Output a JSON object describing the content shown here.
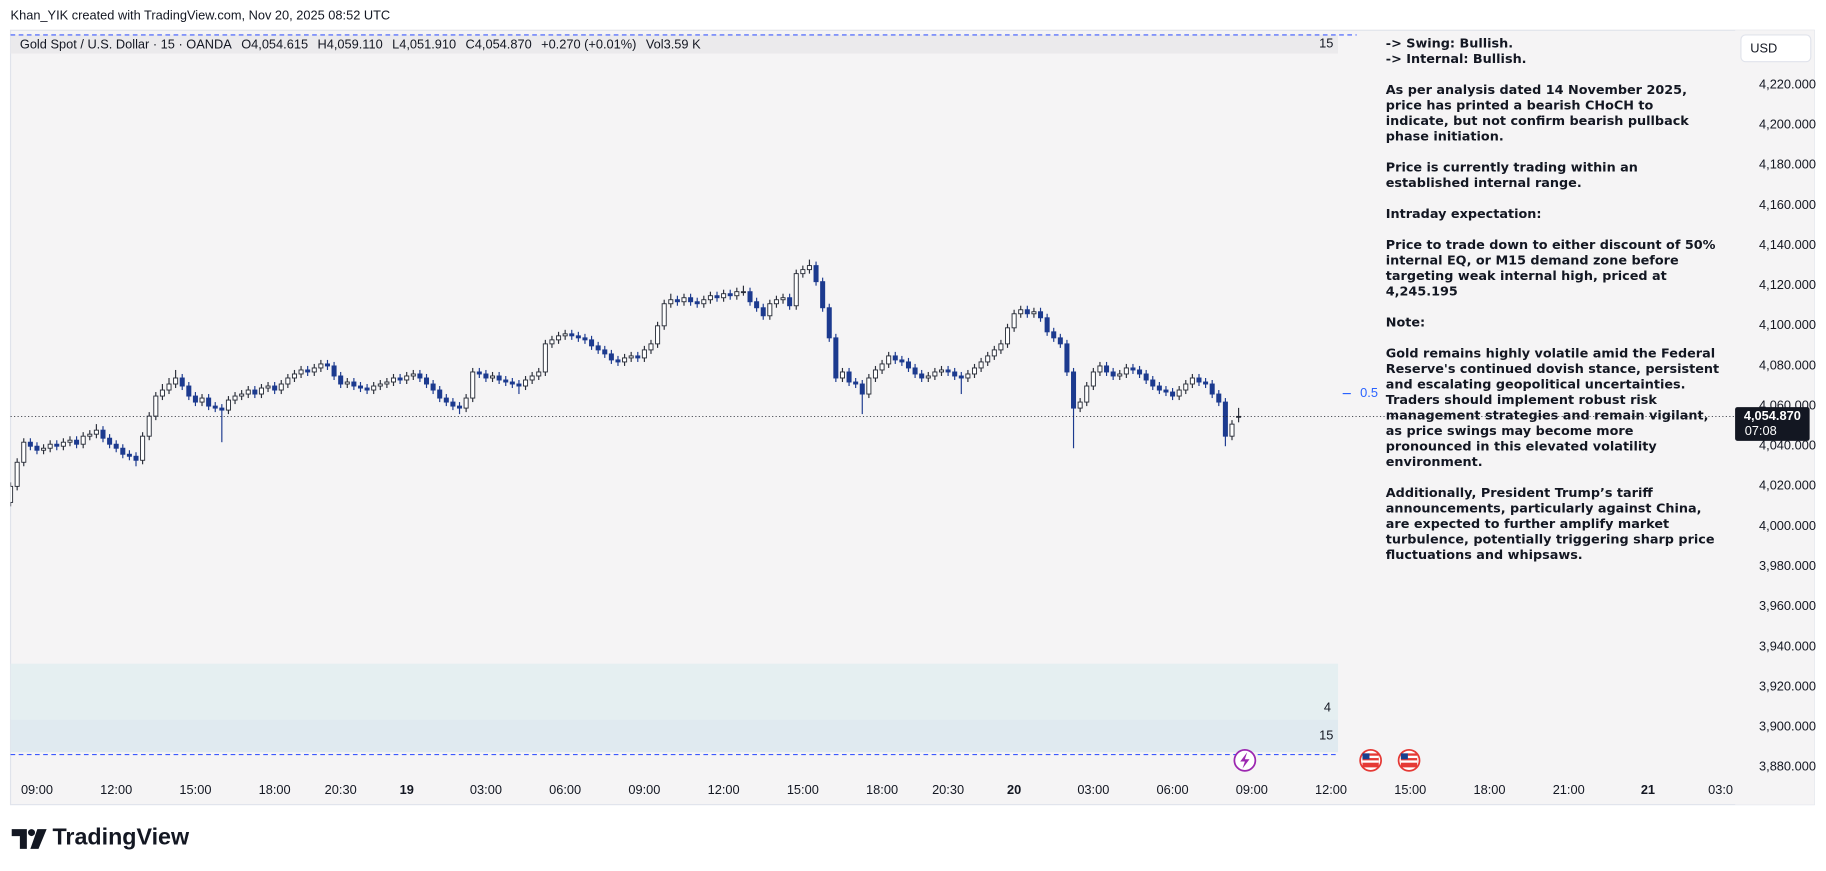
{
  "header": {
    "credit": "Khan_YIK created with TradingView.com, Nov 20, 2025 08:52 UTC"
  },
  "chart_data": {
    "type": "candlestick",
    "title": "Gold Spot / U.S. Dollar · 15 · OANDA",
    "legend_values": [
      "O4,054.615",
      "H4,059.110",
      "L4,051.910",
      "C4,054.870",
      "+0.270 (+0.01%)",
      "Vol3.59 K"
    ],
    "interval_badge": "15",
    "currency": "USD",
    "annotation": "0.5",
    "panels": [
      "4",
      "15"
    ],
    "last_price_label": "4,054.870",
    "countdown": "07:08",
    "up_color": "#ffffff",
    "down_color": "#1c3a8f",
    "xlim": [
      0,
      261.2
    ],
    "xticks": [
      {
        "value": 4,
        "label": "09:00"
      },
      {
        "value": 16,
        "label": "12:00"
      },
      {
        "value": 28,
        "label": "15:00"
      },
      {
        "value": 40,
        "label": "18:00"
      },
      {
        "value": 50,
        "label": "20:30"
      },
      {
        "value": 60,
        "label": "19"
      },
      {
        "value": 72,
        "label": "03:00"
      },
      {
        "value": 84,
        "label": "06:00"
      },
      {
        "value": 96,
        "label": "09:00"
      },
      {
        "value": 108,
        "label": "12:00"
      },
      {
        "value": 120,
        "label": "15:00"
      },
      {
        "value": 132,
        "label": "18:00"
      },
      {
        "value": 142,
        "label": "20:30"
      },
      {
        "value": 152,
        "label": "20"
      },
      {
        "value": 164,
        "label": "03:00"
      },
      {
        "value": 176,
        "label": "06:00"
      },
      {
        "value": 188,
        "label": "09:00"
      },
      {
        "value": 200,
        "label": "12:00"
      },
      {
        "value": 212,
        "label": "15:00"
      },
      {
        "value": 224,
        "label": "18:00"
      },
      {
        "value": 236,
        "label": "21:00"
      },
      {
        "value": 248,
        "label": "21"
      },
      {
        "value": 259,
        "label": "03:0"
      }
    ],
    "ylim": [
      3876.5,
      4246.1
    ],
    "yticks": [
      {
        "value": 4220,
        "label": "4,220.000"
      },
      {
        "value": 4200,
        "label": "4,200.000"
      },
      {
        "value": 4180,
        "label": "4,180.000"
      },
      {
        "value": 4160,
        "label": "4,160.000"
      },
      {
        "value": 4140,
        "label": "4,140.000"
      },
      {
        "value": 4120,
        "label": "4,120.000"
      },
      {
        "value": 4100,
        "label": "4,100.000"
      },
      {
        "value": 4080,
        "label": "4,080.000"
      },
      {
        "value": 4060,
        "label": "4,060.000"
      },
      {
        "value": 4040,
        "label": "4,040.000"
      },
      {
        "value": 4020,
        "label": "4,020.000"
      },
      {
        "value": 4000,
        "label": "4,000.000"
      },
      {
        "value": 3980,
        "label": "3,980.000"
      },
      {
        "value": 3960,
        "label": "3,960.000"
      },
      {
        "value": 3940,
        "label": "3,940.000"
      },
      {
        "value": 3920,
        "label": "3,920.000"
      },
      {
        "value": 3900,
        "label": "3,900.000"
      },
      {
        "value": 3880,
        "label": "3,880.000"
      }
    ],
    "ohlc": [
      [
        4012,
        4022,
        4010,
        4020
      ],
      [
        4020,
        4034,
        4018,
        4032
      ],
      [
        4032,
        4044,
        4030,
        4042
      ],
      [
        4042,
        4044,
        4038,
        4040
      ],
      [
        4040,
        4042,
        4036,
        4038
      ],
      [
        4038,
        4041,
        4036,
        4039
      ],
      [
        4039,
        4043,
        4037,
        4041
      ],
      [
        4041,
        4043,
        4038,
        4040
      ],
      [
        4040,
        4044,
        4038,
        4042
      ],
      [
        4042,
        4045,
        4040,
        4043
      ],
      [
        4043,
        4045,
        4039,
        4041
      ],
      [
        4041,
        4047,
        4039,
        4045
      ],
      [
        4045,
        4048,
        4043,
        4046
      ],
      [
        4046,
        4051,
        4044,
        4048
      ],
      [
        4048,
        4050,
        4042,
        4044
      ],
      [
        4044,
        4046,
        4039,
        4041
      ],
      [
        4041,
        4043,
        4037,
        4039
      ],
      [
        4039,
        4041,
        4034,
        4036
      ],
      [
        4036,
        4038,
        4033,
        4035
      ],
      [
        4035,
        4037,
        4030,
        4033
      ],
      [
        4033,
        4047,
        4031,
        4045
      ],
      [
        4045,
        4057,
        4043,
        4055
      ],
      [
        4055,
        4067,
        4053,
        4065
      ],
      [
        4065,
        4071,
        4063,
        4068
      ],
      [
        4068,
        4074,
        4066,
        4071
      ],
      [
        4071,
        4078,
        4069,
        4074
      ],
      [
        4074,
        4076,
        4068,
        4070
      ],
      [
        4070,
        4072,
        4063,
        4065
      ],
      [
        4065,
        4067,
        4060,
        4062
      ],
      [
        4062,
        4066,
        4060,
        4064
      ],
      [
        4064,
        4066,
        4058,
        4060
      ],
      [
        4060,
        4062,
        4057,
        4059
      ],
      [
        4059,
        4061,
        4042,
        4058
      ],
      [
        4058,
        4065,
        4056,
        4063
      ],
      [
        4063,
        4067,
        4061,
        4065
      ],
      [
        4065,
        4068,
        4063,
        4066
      ],
      [
        4066,
        4070,
        4064,
        4068
      ],
      [
        4068,
        4070,
        4064,
        4066
      ],
      [
        4066,
        4071,
        4064,
        4069
      ],
      [
        4069,
        4072,
        4067,
        4070
      ],
      [
        4070,
        4072,
        4066,
        4068
      ],
      [
        4068,
        4073,
        4066,
        4071
      ],
      [
        4071,
        4076,
        4069,
        4074
      ],
      [
        4074,
        4078,
        4072,
        4076
      ],
      [
        4076,
        4080,
        4074,
        4078
      ],
      [
        4078,
        4080,
        4075,
        4077
      ],
      [
        4077,
        4081,
        4075,
        4079
      ],
      [
        4079,
        4083,
        4077,
        4081
      ],
      [
        4081,
        4083,
        4078,
        4080
      ],
      [
        4080,
        4082,
        4073,
        4075
      ],
      [
        4075,
        4077,
        4069,
        4071
      ],
      [
        4071,
        4074,
        4069,
        4072
      ],
      [
        4072,
        4074,
        4068,
        4070
      ],
      [
        4070,
        4072,
        4067,
        4069
      ],
      [
        4069,
        4071,
        4066,
        4068
      ],
      [
        4068,
        4072,
        4066,
        4070
      ],
      [
        4070,
        4073,
        4068,
        4071
      ],
      [
        4071,
        4074,
        4069,
        4072
      ],
      [
        4072,
        4076,
        4070,
        4074
      ],
      [
        4074,
        4076,
        4071,
        4073
      ],
      [
        4073,
        4077,
        4071,
        4075
      ],
      [
        4075,
        4078,
        4073,
        4076
      ],
      [
        4076,
        4078,
        4072,
        4074
      ],
      [
        4074,
        4076,
        4069,
        4071
      ],
      [
        4071,
        4073,
        4066,
        4068
      ],
      [
        4068,
        4070,
        4062,
        4064
      ],
      [
        4064,
        4066,
        4060,
        4062
      ],
      [
        4062,
        4064,
        4058,
        4060
      ],
      [
        4060,
        4062,
        4056,
        4059
      ],
      [
        4059,
        4066,
        4057,
        4064
      ],
      [
        4064,
        4079,
        4062,
        4077
      ],
      [
        4077,
        4079,
        4074,
        4076
      ],
      [
        4076,
        4078,
        4072,
        4074
      ],
      [
        4074,
        4077,
        4072,
        4075
      ],
      [
        4075,
        4077,
        4071,
        4073
      ],
      [
        4073,
        4075,
        4070,
        4072
      ],
      [
        4072,
        4074,
        4069,
        4071
      ],
      [
        4071,
        4073,
        4066,
        4070
      ],
      [
        4070,
        4075,
        4068,
        4073
      ],
      [
        4073,
        4077,
        4071,
        4075
      ],
      [
        4075,
        4079,
        4073,
        4077
      ],
      [
        4077,
        4093,
        4075,
        4091
      ],
      [
        4091,
        4095,
        4089,
        4093
      ],
      [
        4093,
        4097,
        4091,
        4095
      ],
      [
        4095,
        4098,
        4093,
        4096
      ],
      [
        4096,
        4098,
        4093,
        4095
      ],
      [
        4095,
        4097,
        4092,
        4094
      ],
      [
        4094,
        4096,
        4091,
        4093
      ],
      [
        4093,
        4095,
        4088,
        4090
      ],
      [
        4090,
        4092,
        4086,
        4088
      ],
      [
        4088,
        4090,
        4084,
        4086
      ],
      [
        4086,
        4088,
        4081,
        4083
      ],
      [
        4083,
        4085,
        4080,
        4082
      ],
      [
        4082,
        4086,
        4080,
        4084
      ],
      [
        4084,
        4087,
        4082,
        4085
      ],
      [
        4085,
        4087,
        4082,
        4084
      ],
      [
        4084,
        4090,
        4082,
        4088
      ],
      [
        4088,
        4093,
        4086,
        4091
      ],
      [
        4091,
        4102,
        4089,
        4100
      ],
      [
        4100,
        4113,
        4098,
        4111
      ],
      [
        4111,
        4116,
        4109,
        4113
      ],
      [
        4113,
        4115,
        4110,
        4112
      ],
      [
        4112,
        4116,
        4110,
        4114
      ],
      [
        4114,
        4116,
        4110,
        4112
      ],
      [
        4112,
        4114,
        4109,
        4111
      ],
      [
        4111,
        4115,
        4109,
        4113
      ],
      [
        4113,
        4117,
        4111,
        4115
      ],
      [
        4115,
        4117,
        4112,
        4114
      ],
      [
        4114,
        4118,
        4112,
        4116
      ],
      [
        4116,
        4118,
        4113,
        4115
      ],
      [
        4115,
        4119,
        4113,
        4117
      ],
      [
        4117,
        4120,
        4115,
        4117
      ],
      [
        4117,
        4119,
        4110,
        4112
      ],
      [
        4112,
        4114,
        4107,
        4109
      ],
      [
        4109,
        4111,
        4103,
        4105
      ],
      [
        4105,
        4113,
        4103,
        4111
      ],
      [
        4111,
        4115,
        4109,
        4113
      ],
      [
        4113,
        4116,
        4111,
        4114
      ],
      [
        4114,
        4116,
        4108,
        4110
      ],
      [
        4110,
        4128,
        4108,
        4126
      ],
      [
        4126,
        4130,
        4124,
        4128
      ],
      [
        4128,
        4133,
        4126,
        4130
      ],
      [
        4130,
        4132,
        4120,
        4122
      ],
      [
        4122,
        4124,
        4107,
        4109
      ],
      [
        4109,
        4111,
        4092,
        4094
      ],
      [
        4094,
        4096,
        4072,
        4074
      ],
      [
        4074,
        4079,
        4072,
        4077
      ],
      [
        4077,
        4079,
        4070,
        4072
      ],
      [
        4072,
        4074,
        4069,
        4071
      ],
      [
        4071,
        4073,
        4056,
        4066
      ],
      [
        4066,
        4076,
        4064,
        4074
      ],
      [
        4074,
        4080,
        4072,
        4078
      ],
      [
        4078,
        4083,
        4076,
        4081
      ],
      [
        4081,
        4087,
        4079,
        4085
      ],
      [
        4085,
        4087,
        4081,
        4083
      ],
      [
        4083,
        4085,
        4080,
        4082
      ],
      [
        4082,
        4084,
        4077,
        4079
      ],
      [
        4079,
        4081,
        4074,
        4076
      ],
      [
        4076,
        4078,
        4072,
        4074
      ],
      [
        4074,
        4077,
        4072,
        4075
      ],
      [
        4075,
        4079,
        4073,
        4077
      ],
      [
        4077,
        4080,
        4075,
        4078
      ],
      [
        4078,
        4080,
        4075,
        4077
      ],
      [
        4077,
        4079,
        4073,
        4075
      ],
      [
        4075,
        4077,
        4066,
        4074
      ],
      [
        4074,
        4078,
        4072,
        4076
      ],
      [
        4076,
        4081,
        4074,
        4079
      ],
      [
        4079,
        4084,
        4077,
        4082
      ],
      [
        4082,
        4087,
        4080,
        4085
      ],
      [
        4085,
        4090,
        4083,
        4088
      ],
      [
        4088,
        4093,
        4086,
        4091
      ],
      [
        4091,
        4101,
        4089,
        4099
      ],
      [
        4099,
        4108,
        4097,
        4106
      ],
      [
        4106,
        4110,
        4104,
        4108
      ],
      [
        4108,
        4110,
        4104,
        4106
      ],
      [
        4106,
        4109,
        4104,
        4107
      ],
      [
        4107,
        4109,
        4102,
        4104
      ],
      [
        4104,
        4106,
        4095,
        4097
      ],
      [
        4097,
        4099,
        4092,
        4094
      ],
      [
        4094,
        4096,
        4089,
        4091
      ],
      [
        4091,
        4093,
        4075,
        4077
      ],
      [
        4077,
        4079,
        4039,
        4059
      ],
      [
        4059,
        4064,
        4057,
        4062
      ],
      [
        4062,
        4072,
        4060,
        4070
      ],
      [
        4070,
        4079,
        4068,
        4077
      ],
      [
        4077,
        4082,
        4075,
        4080
      ],
      [
        4080,
        4082,
        4075,
        4077
      ],
      [
        4077,
        4079,
        4073,
        4075
      ],
      [
        4075,
        4078,
        4073,
        4076
      ],
      [
        4076,
        4081,
        4074,
        4079
      ],
      [
        4079,
        4081,
        4076,
        4078
      ],
      [
        4078,
        4080,
        4074,
        4076
      ],
      [
        4076,
        4078,
        4071,
        4073
      ],
      [
        4073,
        4075,
        4068,
        4070
      ],
      [
        4070,
        4072,
        4066,
        4068
      ],
      [
        4068,
        4070,
        4065,
        4067
      ],
      [
        4067,
        4069,
        4063,
        4065
      ],
      [
        4065,
        4070,
        4063,
        4068
      ],
      [
        4068,
        4073,
        4066,
        4071
      ],
      [
        4071,
        4076,
        4069,
        4074
      ],
      [
        4074,
        4076,
        4070,
        4072
      ],
      [
        4072,
        4074,
        4069,
        4071
      ],
      [
        4071,
        4073,
        4064,
        4066
      ],
      [
        4066,
        4068,
        4060,
        4062
      ],
      [
        4062,
        4064,
        4040,
        4045
      ],
      [
        4045,
        4053,
        4043,
        4051
      ],
      [
        4054.615,
        4059.11,
        4051.91,
        4054.87
      ]
    ]
  },
  "note": {
    "paragraphs": [
      [
        "-> Swing: Bullish.",
        "-> Internal: Bullish."
      ],
      [
        "As per analysis dated 14 November 2025,",
        "price has printed a bearish CHoCH to",
        "indicate, but not confirm bearish pullback",
        "phase initiation."
      ],
      [
        "Price is currently trading within an",
        "established internal range."
      ],
      [
        "Intraday expectation:"
      ],
      [
        "Price to trade down to either discount of 50%",
        "internal EQ, or M15 demand zone before",
        "targeting weak internal high, priced at",
        "4,245.195"
      ],
      [
        "Note:"
      ],
      [
        "Gold remains highly volatile amid the Federal",
        "Reserve's continued dovish stance, persistent",
        "and escalating geopolitical uncertainties.",
        "Traders should implement robust risk",
        "management strategies and remain vigilant,",
        "as price swings may become more",
        "pronounced in this elevated volatility",
        "environment."
      ],
      [
        "Additionally, President Trump’s tariff",
        "announcements, particularly against China,",
        "are expected to further amplify market",
        "turbulence, potentially triggering sharp price",
        "fluctuations and whipsaws."
      ]
    ]
  },
  "footer": {
    "brand": "TradingView"
  }
}
